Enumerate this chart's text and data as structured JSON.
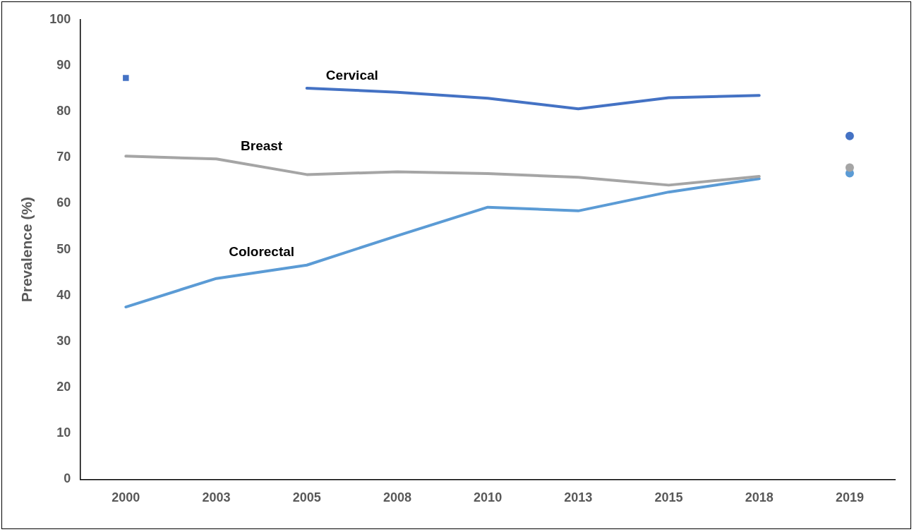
{
  "chart_data": {
    "type": "line",
    "ylabel": "Prevalence (%)",
    "categories": [
      "2000",
      "2003",
      "2005",
      "2008",
      "2010",
      "2013",
      "2015",
      "2018",
      "2019"
    ],
    "ylim": [
      0,
      100
    ],
    "yticks": [
      0,
      10,
      20,
      30,
      40,
      50,
      60,
      70,
      80,
      90,
      100
    ],
    "grid": false,
    "legend": false,
    "marker": "none",
    "line_style": "solid",
    "series": [
      {
        "name": "Cervical",
        "color": "#4472c4",
        "values": [
          87.3,
          null,
          85.1,
          84.2,
          82.9,
          80.6,
          83.0,
          83.5,
          null
        ]
      },
      {
        "name": "Breast",
        "color": "#a5a5a5",
        "values": [
          70.3,
          69.7,
          66.3,
          66.9,
          66.5,
          65.7,
          64.0,
          65.9,
          null
        ]
      },
      {
        "name": "Colorectal",
        "color": "#5b9bd5",
        "values": [
          37.5,
          43.7,
          46.6,
          53.0,
          59.2,
          58.4,
          62.5,
          65.4,
          null
        ]
      },
      {
        "type": "scatter",
        "color": "#4472c4",
        "values": [
          null,
          null,
          null,
          null,
          null,
          null,
          null,
          null,
          74.7
        ],
        "marker": "circle"
      },
      {
        "type": "scatter",
        "color": "#a5a5a5",
        "values": [
          null,
          null,
          null,
          null,
          null,
          null,
          null,
          null,
          67.8
        ],
        "marker": "circle"
      },
      {
        "type": "scatter",
        "color": "#5b9bd5",
        "values": [
          null,
          null,
          null,
          null,
          null,
          null,
          null,
          null,
          66.6
        ],
        "marker": "circle"
      }
    ]
  }
}
